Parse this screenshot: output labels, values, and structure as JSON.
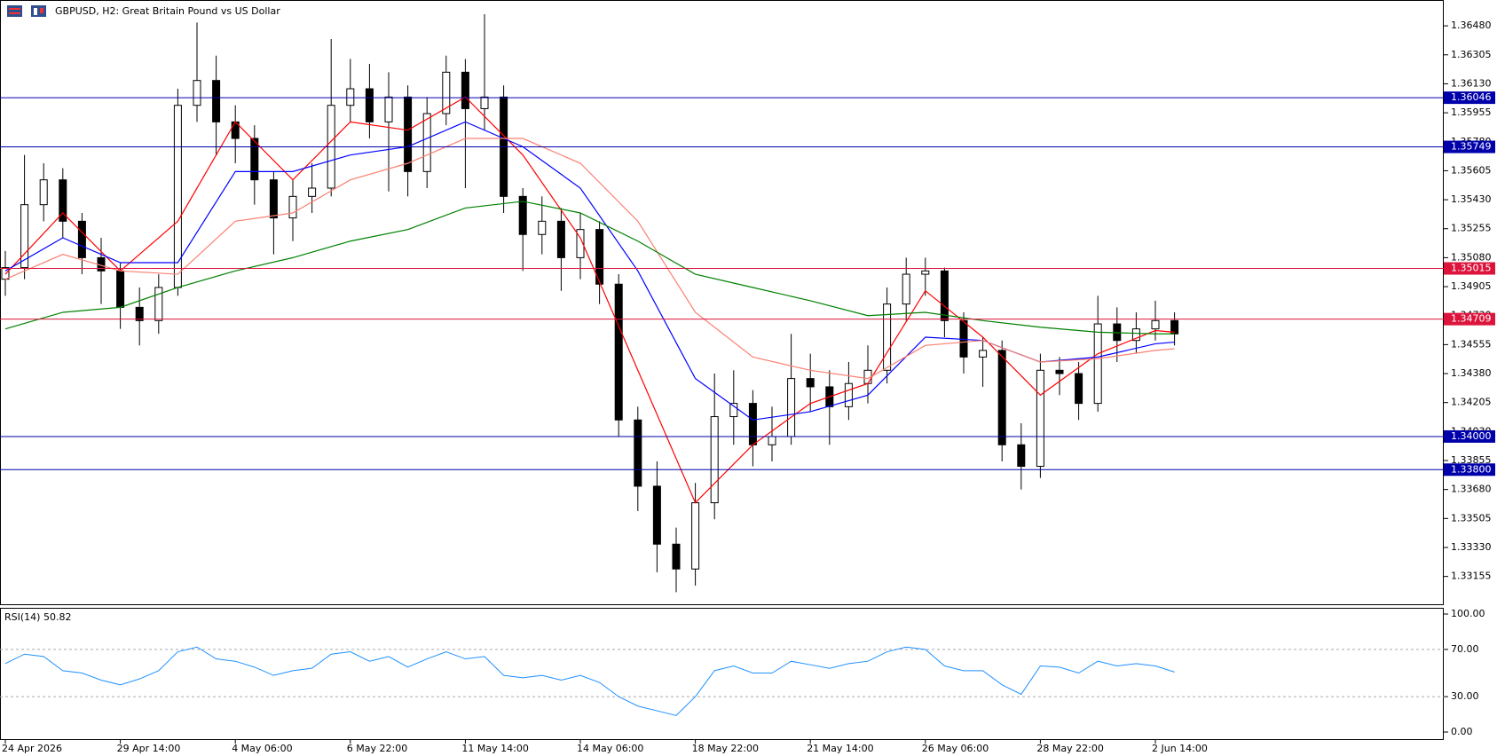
{
  "chart_data": [
    {
      "type": "candlestick",
      "title": "GBPUSD, H2:  Great Britain Pound vs US Dollar",
      "categories": [
        "24 Apr 2026",
        null,
        null,
        null,
        null,
        null,
        "29 Apr 14:00",
        null,
        null,
        null,
        null,
        null,
        "4 May 06:00",
        null,
        null,
        null,
        null,
        null,
        "6 May 22:00",
        null,
        null,
        null,
        null,
        null,
        "11 May 14:00",
        null,
        null,
        null,
        null,
        null,
        "14 May 06:00",
        null,
        null,
        null,
        null,
        null,
        "18 May 22:00",
        null,
        null,
        null,
        null,
        null,
        "21 May 14:00",
        null,
        null,
        null,
        null,
        null,
        "26 May 06:00",
        null,
        null,
        null,
        null,
        null,
        "28 May 22:00",
        null,
        null,
        null,
        null,
        null,
        "2 Jun 14:00",
        null
      ],
      "open": [
        1.3495,
        1.3502,
        1.354,
        1.3555,
        1.353,
        1.3508,
        1.35,
        1.3478,
        1.347,
        1.349,
        1.36,
        1.3615,
        1.359,
        1.358,
        1.3555,
        1.3532,
        1.3545,
        1.355,
        1.36,
        1.361,
        1.359,
        1.3605,
        1.356,
        1.3595,
        1.362,
        1.3598,
        1.3605,
        1.3545,
        1.3522,
        1.353,
        1.3508,
        1.3525,
        1.3492,
        1.341,
        1.337,
        1.3335,
        1.332,
        1.336,
        1.3412,
        1.342,
        1.3395,
        1.34,
        1.3435,
        1.343,
        1.3418,
        1.3432,
        1.344,
        1.348,
        1.3498,
        1.35,
        1.347,
        1.3448,
        1.3452,
        1.3395,
        1.3382,
        1.344,
        1.3438,
        1.342,
        1.3468,
        1.3458,
        1.3465,
        1.347
      ],
      "high": [
        1.3512,
        1.357,
        1.3565,
        1.3562,
        1.3535,
        1.352,
        1.3505,
        1.349,
        1.3498,
        1.361,
        1.365,
        1.363,
        1.36,
        1.3588,
        1.356,
        1.3555,
        1.3565,
        1.364,
        1.3628,
        1.3625,
        1.362,
        1.3612,
        1.3605,
        1.363,
        1.3628,
        1.3655,
        1.3612,
        1.355,
        1.3545,
        1.3538,
        1.3535,
        1.353,
        1.3498,
        1.3418,
        1.3385,
        1.3345,
        1.3372,
        1.3438,
        1.344,
        1.3428,
        1.3418,
        1.3462,
        1.345,
        1.344,
        1.3445,
        1.3455,
        1.349,
        1.3508,
        1.3508,
        1.3502,
        1.3475,
        1.346,
        1.3458,
        1.3408,
        1.345,
        1.3448,
        1.3445,
        1.3485,
        1.3478,
        1.3475,
        1.3482,
        1.3475
      ],
      "low": [
        1.3485,
        1.3495,
        1.353,
        1.352,
        1.3498,
        1.348,
        1.3465,
        1.3455,
        1.3462,
        1.3485,
        1.359,
        1.357,
        1.3565,
        1.354,
        1.351,
        1.3518,
        1.3535,
        1.3545,
        1.359,
        1.358,
        1.3548,
        1.3545,
        1.355,
        1.3588,
        1.355,
        1.3585,
        1.3535,
        1.35,
        1.351,
        1.3488,
        1.3495,
        1.348,
        1.34,
        1.3355,
        1.3318,
        1.3306,
        1.331,
        1.335,
        1.3395,
        1.3382,
        1.3385,
        1.3395,
        1.3415,
        1.3395,
        1.341,
        1.342,
        1.3432,
        1.347,
        1.3485,
        1.346,
        1.3438,
        1.343,
        1.3385,
        1.3368,
        1.3375,
        1.3425,
        1.341,
        1.3415,
        1.3445,
        1.345,
        1.3458,
        1.3455
      ],
      "close": [
        1.3502,
        1.354,
        1.3555,
        1.353,
        1.3508,
        1.35,
        1.3478,
        1.347,
        1.349,
        1.36,
        1.3615,
        1.359,
        1.358,
        1.3555,
        1.3532,
        1.3545,
        1.355,
        1.36,
        1.361,
        1.359,
        1.3605,
        1.356,
        1.3595,
        1.362,
        1.3598,
        1.3605,
        1.3545,
        1.3522,
        1.353,
        1.3508,
        1.3525,
        1.3492,
        1.341,
        1.337,
        1.3335,
        1.332,
        1.336,
        1.3412,
        1.342,
        1.3395,
        1.34,
        1.3435,
        1.343,
        1.3418,
        1.3432,
        1.344,
        1.348,
        1.3498,
        1.35,
        1.347,
        1.3448,
        1.3452,
        1.3395,
        1.3382,
        1.344,
        1.3438,
        1.342,
        1.3468,
        1.3458,
        1.3465,
        1.347,
        1.3462
      ],
      "overlays": [
        {
          "color": "#ff0000",
          "x": [
            0,
            3,
            6,
            9,
            12,
            15,
            18,
            21,
            24,
            27,
            30,
            33,
            36,
            39,
            42,
            45,
            48,
            51,
            54,
            57,
            60,
            61
          ],
          "values": [
            1.3498,
            1.3535,
            1.35,
            1.353,
            1.359,
            1.3555,
            1.359,
            1.3585,
            1.3605,
            1.357,
            1.352,
            1.344,
            1.336,
            1.3395,
            1.342,
            1.3432,
            1.3488,
            1.346,
            1.3425,
            1.345,
            1.3464,
            1.3463
          ]
        },
        {
          "color": "#0000ff",
          "x": [
            0,
            3,
            6,
            9,
            12,
            15,
            18,
            21,
            24,
            27,
            30,
            33,
            36,
            39,
            42,
            45,
            48,
            51,
            54,
            57,
            60,
            61
          ],
          "values": [
            1.35,
            1.352,
            1.3505,
            1.3505,
            1.356,
            1.356,
            1.357,
            1.3575,
            1.359,
            1.3575,
            1.355,
            1.35,
            1.3435,
            1.341,
            1.3415,
            1.3425,
            1.346,
            1.3458,
            1.3445,
            1.3448,
            1.3456,
            1.3457
          ]
        },
        {
          "color": "#fa8072",
          "x": [
            0,
            3,
            6,
            9,
            12,
            15,
            18,
            21,
            24,
            27,
            30,
            33,
            36,
            39,
            42,
            45,
            48,
            51,
            54,
            57,
            60,
            61
          ],
          "values": [
            1.3495,
            1.351,
            1.35,
            1.3498,
            1.353,
            1.3535,
            1.3555,
            1.3565,
            1.358,
            1.358,
            1.3565,
            1.353,
            1.3475,
            1.3448,
            1.344,
            1.3435,
            1.3455,
            1.3458,
            1.3445,
            1.3447,
            1.3452,
            1.3453
          ]
        },
        {
          "color": "#008000",
          "x": [
            0,
            3,
            6,
            9,
            12,
            15,
            18,
            21,
            24,
            27,
            30,
            33,
            36,
            39,
            42,
            45,
            48,
            51,
            54,
            57,
            60,
            61
          ],
          "values": [
            1.3465,
            1.3475,
            1.3478,
            1.349,
            1.35,
            1.3508,
            1.3518,
            1.3525,
            1.3538,
            1.3542,
            1.3535,
            1.3518,
            1.3498,
            1.349,
            1.3482,
            1.3473,
            1.3475,
            1.347,
            1.3466,
            1.3463,
            1.3462,
            1.3462
          ]
        }
      ],
      "levels": [
        {
          "value": 1.36046,
          "color": "#0000aa"
        },
        {
          "value": 1.35749,
          "color": "#0000aa"
        },
        {
          "value": 1.35015,
          "color": "#dc143c"
        },
        {
          "value": 1.34709,
          "color": "#dc143c"
        },
        {
          "value": {
            "value": 1.34,
            "label": "1.34000"
          },
          "color": "#0000aa"
        },
        {
          "value": {
            "value": 1.338,
            "label": "1.33800"
          },
          "color": "#0000aa"
        }
      ],
      "ylim": [
        1.32987,
        1.36636
      ],
      "yticks": [
        {
          "value": 1.3648,
          "label": "1.36480"
        },
        1.36305,
        {
          "value": 1.3613,
          "label": "1.36130"
        },
        1.35955,
        {
          "value": 1.3578,
          "label": "1.35780"
        },
        1.35605,
        {
          "value": 1.3543,
          "label": "1.35430"
        },
        1.35255,
        {
          "value": 1.3508,
          "label": "1.35080"
        },
        1.34905,
        {
          "value": 1.3473,
          "label": "1.34730"
        },
        1.34555,
        {
          "value": 1.3438,
          "label": "1.34380"
        },
        1.34205,
        {
          "value": 1.3403,
          "label": "1.34030"
        },
        1.33855,
        {
          "value": 1.3368,
          "label": "1.33680"
        },
        1.33505,
        {
          "value": 1.3333,
          "label": "1.33330"
        },
        1.33155
      ]
    },
    {
      "type": "line",
      "title": "RSI(14) 50.82",
      "color": "#1e90ff",
      "values": [
        58,
        66,
        64,
        52,
        50,
        44,
        40,
        45,
        52,
        68,
        72,
        62,
        60,
        55,
        48,
        52,
        54,
        66,
        68,
        60,
        64,
        55,
        62,
        68,
        62,
        64,
        48,
        46,
        48,
        44,
        48,
        42,
        30,
        22,
        18,
        14,
        30,
        52,
        56,
        50,
        50,
        60,
        57,
        54,
        58,
        60,
        68,
        72,
        70,
        56,
        52,
        52,
        40,
        32,
        56,
        55,
        50,
        60,
        56,
        58,
        56,
        50.82
      ],
      "ylim": [
        0,
        100
      ],
      "yticks": [
        {
          "value": 0,
          "label": "0.00"
        },
        {
          "value": 30,
          "label": "30.00"
        },
        {
          "value": 70,
          "label": "70.00"
        },
        {
          "value": 100,
          "label": "100.00"
        }
      ],
      "levels": [
        30,
        70
      ]
    }
  ]
}
